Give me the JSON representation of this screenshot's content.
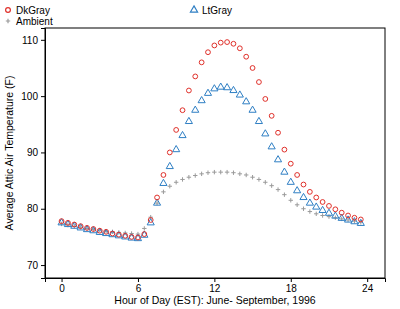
{
  "chart_data": {
    "type": "scatter",
    "x_label": "Hour of Day (EST): June- September, 1996",
    "y_label": "Average Attic Air Temperature (F)",
    "x": [
      0,
      0.5,
      1,
      1.5,
      2,
      2.5,
      3,
      3.5,
      4,
      4.5,
      5,
      5.5,
      6,
      6.5,
      7,
      7.5,
      8,
      8.5,
      9,
      9.5,
      10,
      10.5,
      11,
      11.5,
      12,
      12.5,
      13,
      13.5,
      14,
      14.5,
      15,
      15.5,
      16,
      16.5,
      17,
      17.5,
      18,
      18.5,
      19,
      19.5,
      20,
      20.5,
      21,
      21.5,
      22,
      22.5,
      23,
      23.5
    ],
    "series": [
      {
        "name": "DkGray",
        "color": "#e0302a",
        "marker": "circle",
        "values": [
          77.8,
          77.5,
          77.2,
          76.9,
          76.6,
          76.4,
          76.1,
          75.9,
          75.6,
          75.4,
          75.2,
          75.0,
          74.9,
          75.5,
          78,
          82,
          86,
          90,
          94,
          97.5,
          101,
          103.5,
          106,
          107.8,
          109,
          109.5,
          109.6,
          109.3,
          108.5,
          107,
          105,
          102.5,
          99.5,
          96.5,
          93.5,
          90.5,
          88,
          86,
          84.3,
          83,
          82,
          81.2,
          80.5,
          79.9,
          79.3,
          78.8,
          78.4,
          78.1
        ]
      },
      {
        "name": "LtGray",
        "color": "#2f7fc4",
        "marker": "triangle",
        "values": [
          77.5,
          77.2,
          76.9,
          76.6,
          76.3,
          76.1,
          75.8,
          75.6,
          75.4,
          75.2,
          75.0,
          74.8,
          74.7,
          75.3,
          77.5,
          81,
          84.5,
          87.5,
          90.5,
          93,
          95.5,
          97.5,
          99.2,
          100.5,
          101.3,
          101.6,
          101.5,
          101,
          100.2,
          99,
          97.5,
          95.5,
          93.3,
          91,
          88.7,
          86.5,
          84.7,
          83.2,
          82,
          81,
          80.3,
          79.7,
          79.2,
          78.7,
          78.3,
          78,
          77.7,
          77.4
        ]
      },
      {
        "name": "Ambient",
        "color": "#9a9a9a",
        "marker": "plus",
        "values": [
          77.3,
          77.1,
          76.9,
          76.7,
          76.5,
          76.3,
          76.2,
          76.0,
          75.9,
          75.8,
          75.7,
          75.6,
          75.5,
          76.5,
          78.5,
          81,
          83,
          84,
          84.7,
          85.2,
          85.6,
          85.9,
          86.2,
          86.4,
          86.5,
          86.5,
          86.5,
          86.4,
          86.2,
          86,
          85.6,
          85.2,
          84.7,
          84.1,
          83.4,
          82.5,
          81.5,
          80.7,
          80,
          79.5,
          79.1,
          78.8,
          78.6,
          78.4,
          78.2,
          78,
          77.8,
          77.6
        ]
      }
    ],
    "xlim": [
      -1.3,
      25.4
    ],
    "xticks": [
      0,
      6,
      12,
      18,
      24
    ],
    "ylim": [
      67.7,
      112.1
    ],
    "yticks": [
      70,
      80,
      90,
      100,
      110
    ],
    "grid": false,
    "legend": "top"
  }
}
